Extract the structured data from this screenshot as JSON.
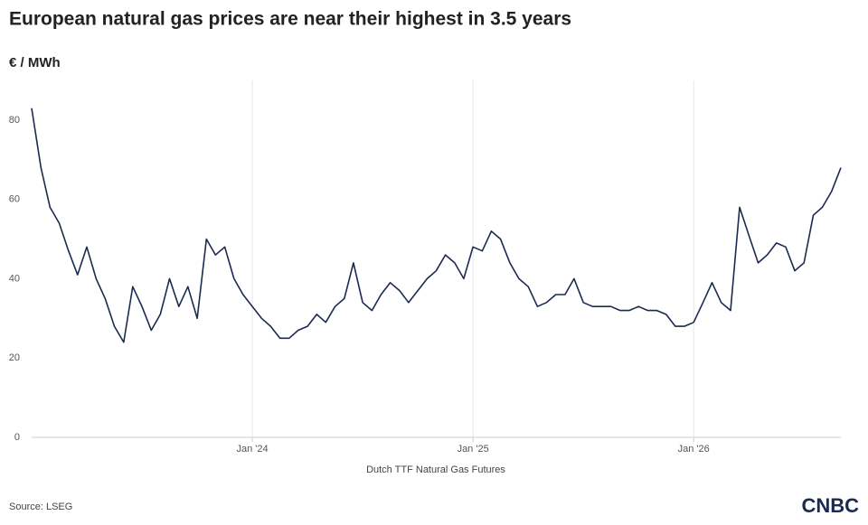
{
  "chart_data": {
    "type": "line",
    "title": "European natural gas prices are near their highest in 3.5 years",
    "y_label": "€ / MWh",
    "x_label": "Dutch TTF Natural Gas Futures",
    "source": "Source: LSEG",
    "logo": "CNBC",
    "color": "#1a2b4f",
    "grid": true,
    "xlim": [
      2023,
      2026.667
    ],
    "xticks": [
      {
        "value": 2024,
        "label": "Jan '24"
      },
      {
        "value": 2025,
        "label": "Jan '25"
      },
      {
        "value": 2026,
        "label": "Jan '26"
      }
    ],
    "ylim": [
      0,
      90
    ],
    "yticks": [
      0,
      20,
      40,
      60,
      80
    ],
    "x": [
      2023,
      2023.042,
      2023.083,
      2023.125,
      2023.167,
      2023.208,
      2023.25,
      2023.292,
      2023.333,
      2023.375,
      2023.417,
      2023.458,
      2023.5,
      2023.542,
      2023.583,
      2023.625,
      2023.667,
      2023.708,
      2023.75,
      2023.792,
      2023.833,
      2023.875,
      2023.917,
      2023.958,
      2024,
      2024.042,
      2024.083,
      2024.125,
      2024.167,
      2024.208,
      2024.25,
      2024.292,
      2024.333,
      2024.375,
      2024.417,
      2024.458,
      2024.5,
      2024.542,
      2024.583,
      2024.625,
      2024.667,
      2024.708,
      2024.75,
      2024.792,
      2024.833,
      2024.875,
      2024.917,
      2024.958,
      2025,
      2025.042,
      2025.083,
      2025.125,
      2025.167,
      2025.208,
      2025.25,
      2025.292,
      2025.333,
      2025.375,
      2025.417,
      2025.458,
      2025.5,
      2025.542,
      2025.583,
      2025.625,
      2025.667,
      2025.708,
      2025.75,
      2025.792,
      2025.833,
      2025.875,
      2025.917,
      2025.958,
      2026,
      2026.042,
      2026.083,
      2026.125,
      2026.167,
      2026.208,
      2026.25,
      2026.292,
      2026.333,
      2026.375,
      2026.417,
      2026.458,
      2026.5,
      2026.542,
      2026.583,
      2026.625,
      2026.667
    ],
    "values": [
      83,
      68,
      58,
      54,
      47,
      41,
      48,
      40,
      35,
      28,
      24,
      38,
      33,
      27,
      31,
      40,
      33,
      38,
      30,
      50,
      46,
      48,
      40,
      36,
      33,
      30,
      28,
      25,
      25,
      27,
      28,
      31,
      29,
      33,
      35,
      44,
      34,
      32,
      36,
      39,
      37,
      34,
      37,
      40,
      42,
      46,
      44,
      40,
      48,
      47,
      52,
      50,
      44,
      40,
      38,
      33,
      34,
      36,
      36,
      40,
      34,
      33,
      33,
      33,
      32,
      32,
      33,
      32,
      32,
      31,
      28,
      28,
      29,
      34,
      39,
      34,
      32,
      58,
      51,
      44,
      46,
      49,
      48,
      42,
      44,
      56,
      58,
      62,
      68
    ]
  }
}
